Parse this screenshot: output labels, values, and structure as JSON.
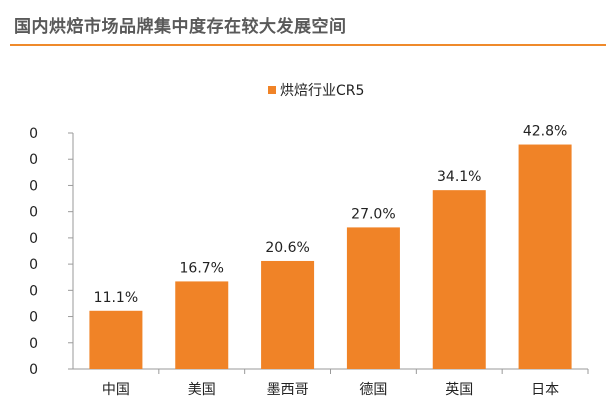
{
  "header": {
    "title": "国内烘焙市场品牌集中度存在较大发展空间"
  },
  "colors": {
    "bar": "#f08327",
    "accent_rule": "#ef8a2b",
    "axis": "#9a9a9a",
    "text": "#222222"
  },
  "chart_data": {
    "type": "bar",
    "categories": [
      "中国",
      "美国",
      "墨西哥",
      "德国",
      "英国",
      "日本"
    ],
    "series": [
      {
        "name": "烘焙行业CR5",
        "values": [
          11.1,
          16.7,
          20.6,
          27.0,
          34.1,
          42.8
        ]
      }
    ],
    "value_labels": [
      "11.1%",
      "16.7%",
      "20.6%",
      "27.0%",
      "34.1%",
      "42.8%"
    ],
    "y_tick_labels": [
      "0",
      "0",
      "0",
      "0",
      "0",
      "0",
      "0",
      "0",
      "0",
      "0"
    ],
    "ylim": [
      0,
      45
    ],
    "legend_position": "top-center",
    "grid": false
  }
}
